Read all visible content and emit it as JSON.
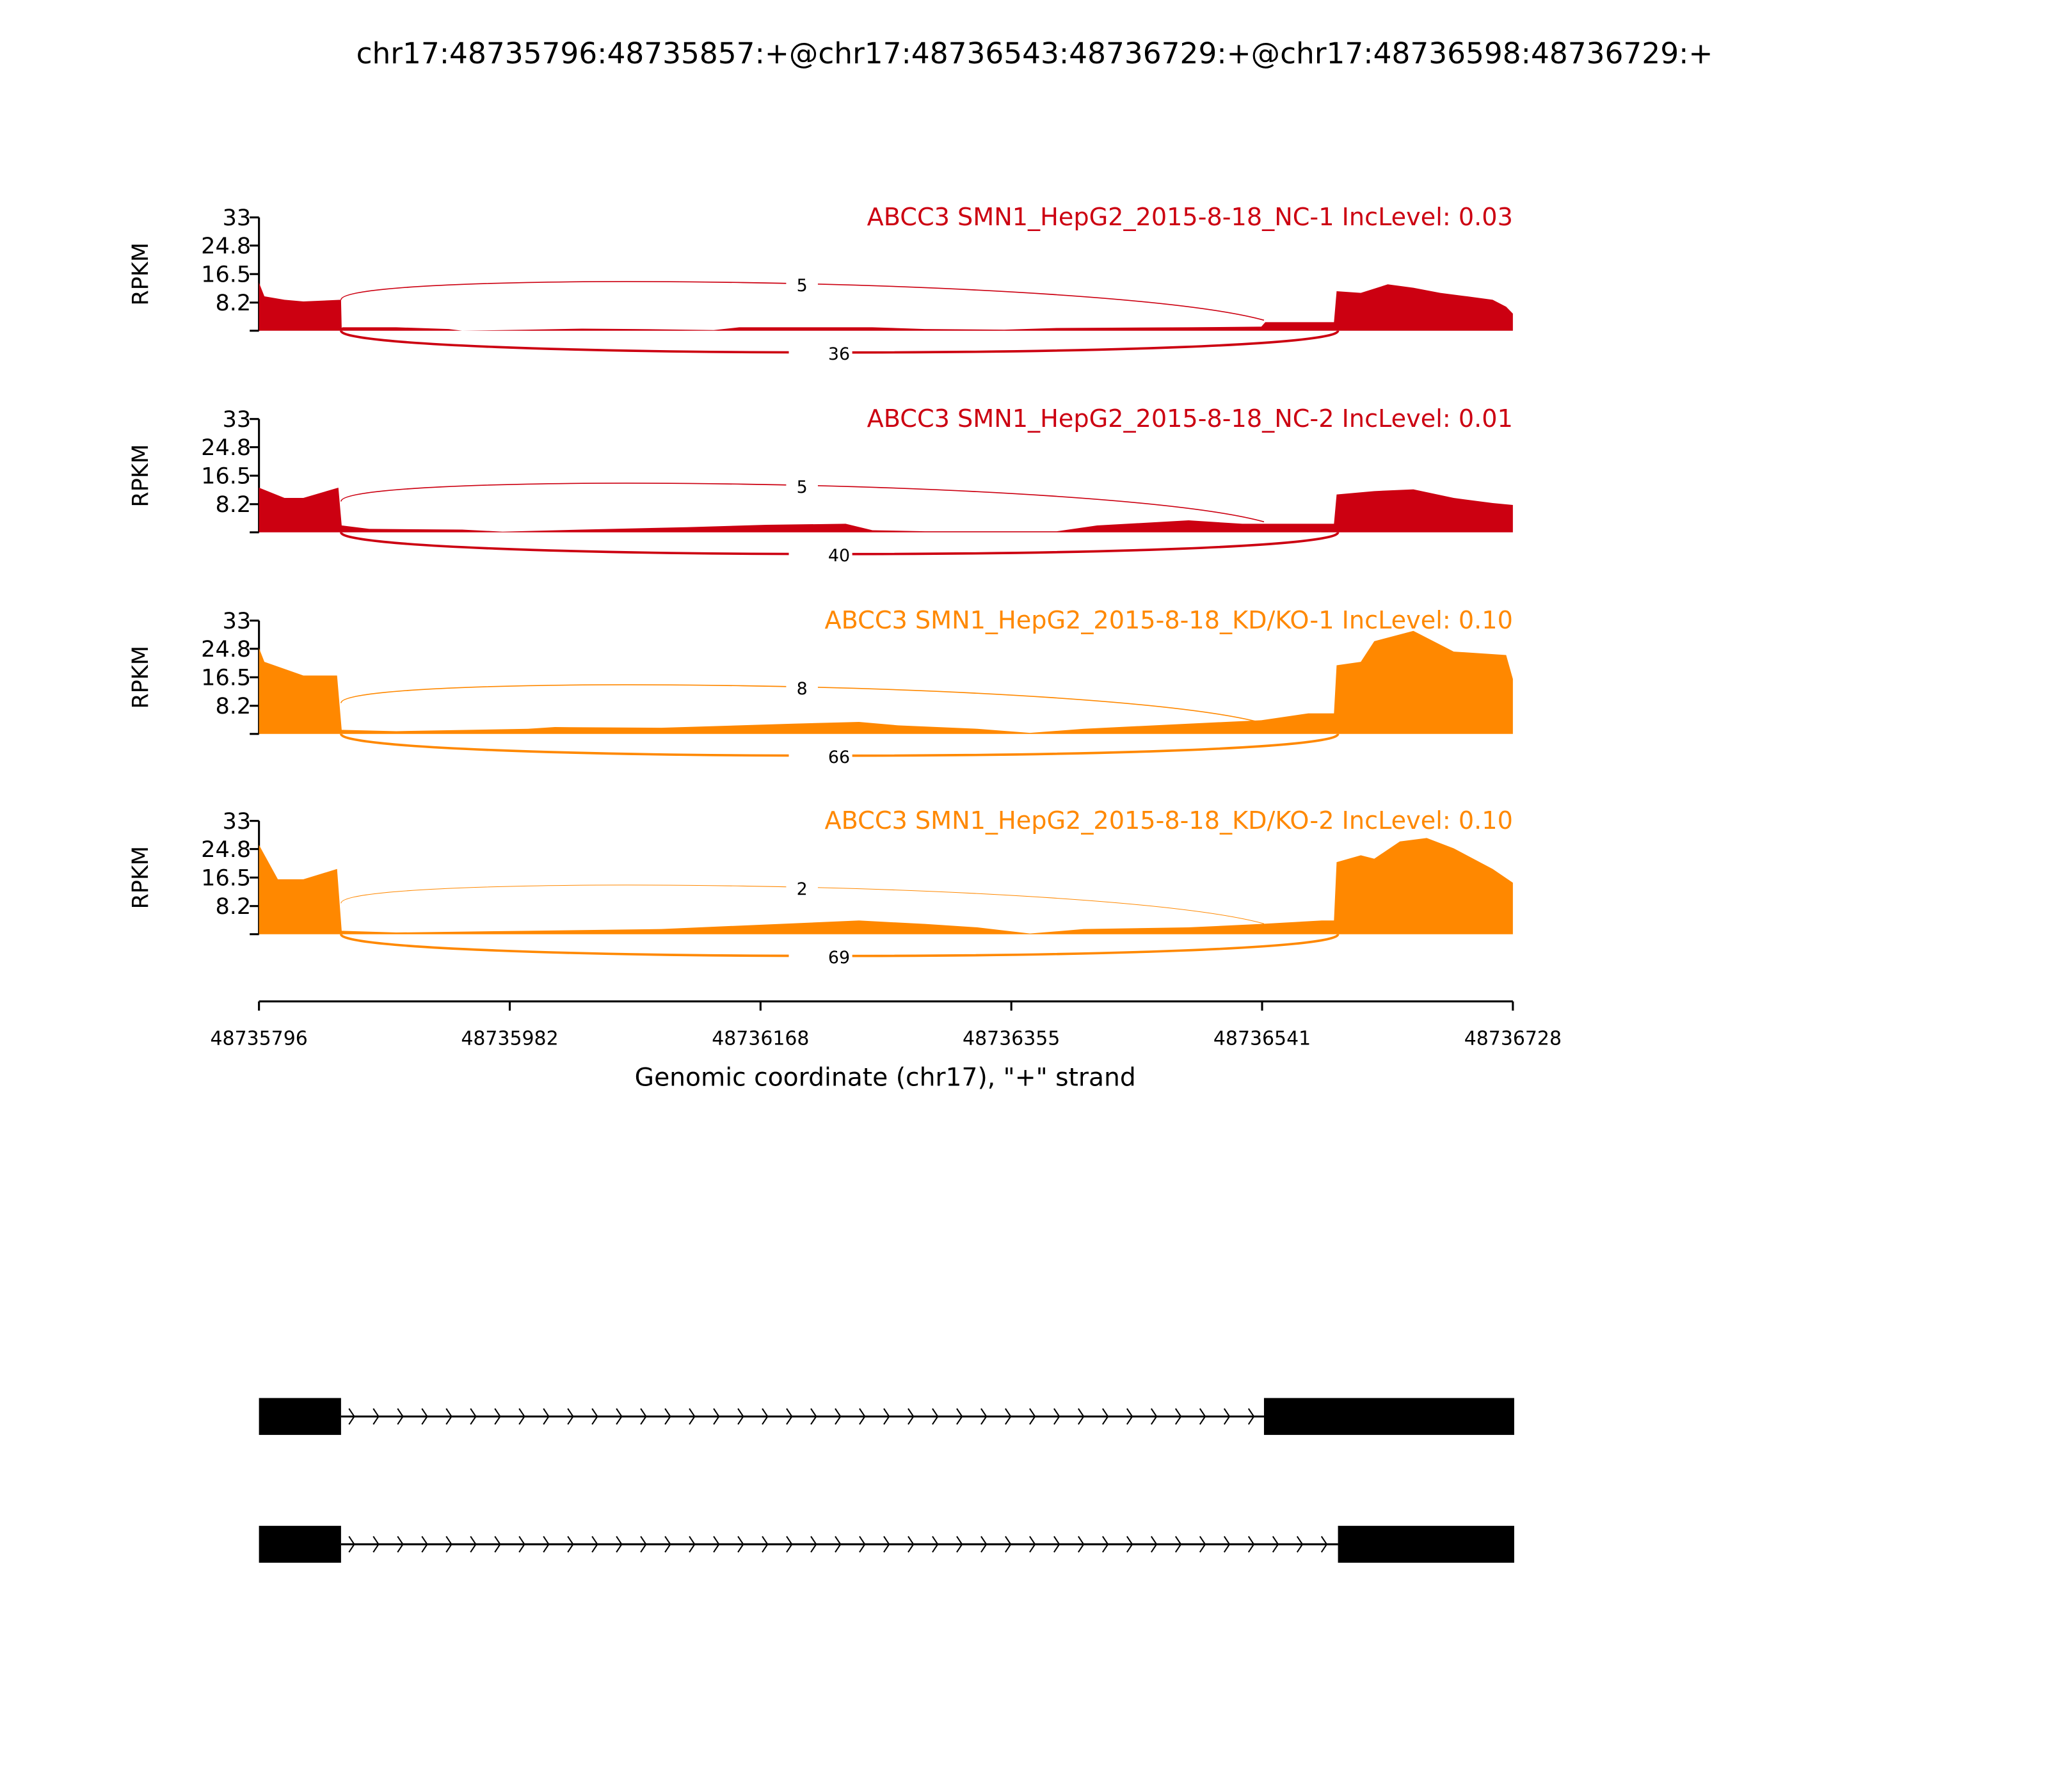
{
  "chart_data": {
    "type": "area",
    "title": "chr17:48735796:48735857:+@chr17:48736543:48736729:+@chr17:48736598:48736729:+",
    "xlabel": "Genomic coordinate (chr17), \"+\" strand",
    "ylabel": "RPKM",
    "xlim": [
      48735796,
      48736728
    ],
    "x_ticks": [
      "48735796",
      "48735982",
      "48736168",
      "48736355",
      "48736541",
      "48736728"
    ],
    "ylim": [
      0,
      33
    ],
    "y_ticks": [
      "33",
      "24.8",
      "16.5",
      "8.2"
    ],
    "coord_origin": 48735796,
    "junctions": {
      "exon1_end": 48735857,
      "exon2a_start": 48736543,
      "exon2b_start": 48736598
    },
    "series": [
      {
        "name": "ABCC3 SMN1_HepG2_2015-8-18_NC-1 IncLevel: 0.03",
        "color": "#cc0011",
        "inclusion_count": "5",
        "skipping_count": "36",
        "coverage": [
          [
            0,
            14
          ],
          [
            4,
            10
          ],
          [
            19,
            9
          ],
          [
            33,
            8.5
          ],
          [
            61,
            9
          ],
          [
            61.5,
            0.8
          ],
          [
            62,
            1
          ],
          [
            102,
            1
          ],
          [
            141,
            0.5
          ],
          [
            151,
            0
          ],
          [
            200,
            0.3
          ],
          [
            240,
            0.6
          ],
          [
            279,
            0.5
          ],
          [
            338,
            0.2
          ],
          [
            357,
            1
          ],
          [
            456,
            1
          ],
          [
            495,
            0.5
          ],
          [
            554,
            0.3
          ],
          [
            593,
            0.8
          ],
          [
            691,
            1
          ],
          [
            745,
            1.2
          ],
          [
            748,
            2.5
          ],
          [
            799,
            2.5
          ],
          [
            801,
            11.5
          ],
          [
            819,
            11
          ],
          [
            839,
            13.5
          ],
          [
            858,
            12.5
          ],
          [
            878,
            11
          ],
          [
            898,
            10
          ],
          [
            917,
            9
          ],
          [
            927,
            7
          ],
          [
            932,
            5
          ]
        ]
      },
      {
        "name": "ABCC3 SMN1_HepG2_2015-8-18_NC-2 IncLevel: 0.01",
        "color": "#cc0011",
        "inclusion_count": "5",
        "skipping_count": "40",
        "coverage": [
          [
            0,
            13
          ],
          [
            19,
            10
          ],
          [
            33,
            10
          ],
          [
            59,
            13
          ],
          [
            61.5,
            2
          ],
          [
            82,
            1
          ],
          [
            151,
            0.8
          ],
          [
            181,
            0.2
          ],
          [
            240,
            0.8
          ],
          [
            318,
            1.5
          ],
          [
            377,
            2.2
          ],
          [
            436,
            2.5
          ],
          [
            456,
            0.6
          ],
          [
            495,
            0.3
          ],
          [
            593,
            0.3
          ],
          [
            623,
            2
          ],
          [
            691,
            3.5
          ],
          [
            731,
            2.5
          ],
          [
            750,
            2.5
          ],
          [
            799,
            2.5
          ],
          [
            801,
            11
          ],
          [
            829,
            12
          ],
          [
            858,
            12.5
          ],
          [
            888,
            10
          ],
          [
            917,
            8.5
          ],
          [
            932,
            8
          ]
        ]
      },
      {
        "name": "ABCC3 SMN1_HepG2_2015-8-18_KD/KO-1 IncLevel: 0.10",
        "color": "#ff8800",
        "inclusion_count": "8",
        "skipping_count": "66",
        "coverage": [
          [
            0,
            25
          ],
          [
            4,
            21
          ],
          [
            33,
            17
          ],
          [
            58,
            17
          ],
          [
            61.5,
            1.2
          ],
          [
            102,
            0.8
          ],
          [
            200,
            1.5
          ],
          [
            220,
            2
          ],
          [
            299,
            1.8
          ],
          [
            357,
            2.5
          ],
          [
            397,
            3
          ],
          [
            446,
            3.5
          ],
          [
            475,
            2.5
          ],
          [
            534,
            1.5
          ],
          [
            573,
            0.3
          ],
          [
            613,
            1.5
          ],
          [
            691,
            3
          ],
          [
            745,
            4
          ],
          [
            780,
            6
          ],
          [
            799,
            6
          ],
          [
            801,
            20
          ],
          [
            819,
            21
          ],
          [
            829,
            27
          ],
          [
            858,
            30
          ],
          [
            888,
            24
          ],
          [
            927,
            23
          ],
          [
            932,
            16
          ]
        ]
      },
      {
        "name": "ABCC3 SMN1_HepG2_2015-8-18_KD/KO-2 IncLevel: 0.10",
        "color": "#ff8800",
        "inclusion_count": "2",
        "skipping_count": "69",
        "coverage": [
          [
            0,
            26
          ],
          [
            14,
            16
          ],
          [
            33,
            16
          ],
          [
            58,
            19
          ],
          [
            61.5,
            1
          ],
          [
            102,
            0.5
          ],
          [
            200,
            1
          ],
          [
            299,
            1.5
          ],
          [
            357,
            2.5
          ],
          [
            446,
            4
          ],
          [
            495,
            3
          ],
          [
            534,
            2
          ],
          [
            573,
            0.2
          ],
          [
            613,
            1.5
          ],
          [
            691,
            2
          ],
          [
            745,
            3
          ],
          [
            790,
            4
          ],
          [
            799,
            4
          ],
          [
            801,
            21
          ],
          [
            819,
            23
          ],
          [
            829,
            22
          ],
          [
            848,
            27
          ],
          [
            868,
            28
          ],
          [
            888,
            25
          ],
          [
            917,
            19
          ],
          [
            932,
            15
          ]
        ]
      }
    ],
    "isoforms": [
      {
        "exons": [
          [
            48735796,
            48735857
          ],
          [
            48736543,
            48736729
          ]
        ]
      },
      {
        "exons": [
          [
            48735796,
            48735857
          ],
          [
            48736598,
            48736729
          ]
        ]
      }
    ],
    "grid": false
  }
}
